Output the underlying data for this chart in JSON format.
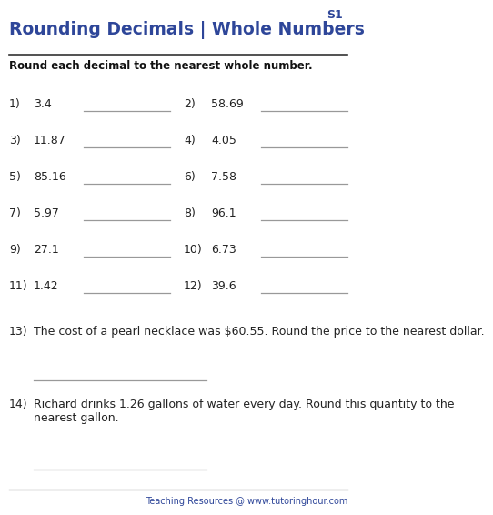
{
  "title": "Rounding Decimals | Whole Numbers",
  "sheet_label": "S1",
  "instruction": "Round each decimal to the nearest whole number.",
  "problems": [
    {
      "num": "1)",
      "val": "3.4"
    },
    {
      "num": "2)",
      "val": "58.69"
    },
    {
      "num": "3)",
      "val": "11.87"
    },
    {
      "num": "4)",
      "val": "4.05"
    },
    {
      "num": "5)",
      "val": "85.16"
    },
    {
      "num": "6)",
      "val": "7.58"
    },
    {
      "num": "7)",
      "val": "5.97"
    },
    {
      "num": "8)",
      "val": "96.1"
    },
    {
      "num": "9)",
      "val": "27.1"
    },
    {
      "num": "10)",
      "val": "6.73"
    },
    {
      "num": "11)",
      "val": "1.42"
    },
    {
      "num": "12)",
      "val": "39.6"
    }
  ],
  "word_problems": [
    {
      "num": "13)",
      "text": "The cost of a pearl necklace was $60.55. Round the price to the nearest dollar."
    },
    {
      "num": "14)",
      "text": "Richard drinks 1.26 gallons of water every day. Round this quantity to the\nnearest gallon."
    }
  ],
  "footer_plain": "Teaching Resources @ ",
  "footer_link": "www.tutoringhour.com",
  "title_color": "#2E4699",
  "line_color": "#555555",
  "header_line_color": "#333333",
  "footer_line_color": "#aaaaaa",
  "text_color": "#222222",
  "instruction_color": "#111111",
  "bg_color": "#ffffff",
  "answer_line_color": "#999999",
  "link_color": "#2E4699"
}
